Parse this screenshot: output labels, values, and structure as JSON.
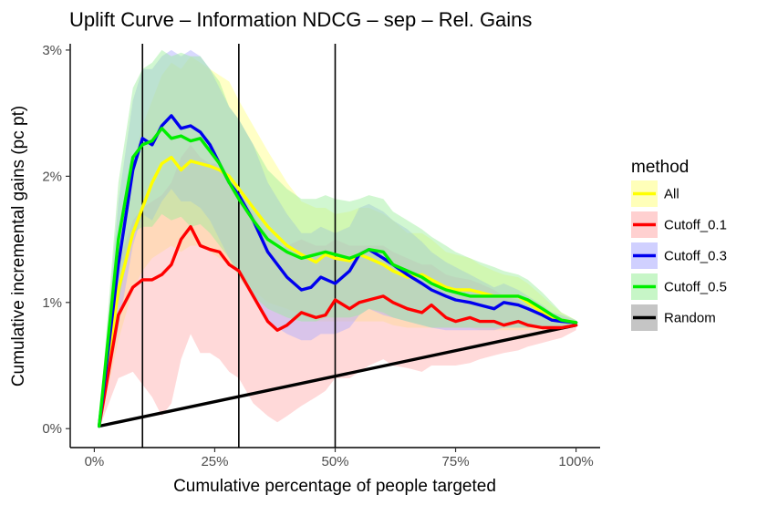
{
  "chart_data": {
    "type": "line",
    "title": "Uplift Curve –  Information NDCG  –  sep  –  Rel. Gains",
    "xlabel": "Cumulative percentage of people targeted",
    "ylabel": "Cumulative incremental gains (pc pt)",
    "xlim": [
      -5,
      105
    ],
    "ylim": [
      -0.15,
      3.05
    ],
    "x_ticks": [
      0,
      25,
      50,
      75,
      100
    ],
    "x_tick_labels": [
      "0%",
      "25%",
      "50%",
      "75%",
      "100%"
    ],
    "y_ticks": [
      0,
      1,
      2,
      3
    ],
    "y_tick_labels": [
      "0%",
      "1%",
      "2%",
      "3%"
    ],
    "vlines": [
      10,
      30,
      50
    ],
    "legend": {
      "title": "method",
      "position": "right"
    },
    "series": [
      {
        "name": "All",
        "color": "#ffff00",
        "band_color": "#ffff80",
        "x": [
          1,
          5,
          8,
          10,
          12,
          14,
          16,
          18,
          20,
          22,
          24,
          26,
          28,
          30,
          33,
          36,
          40,
          43,
          46,
          48,
          50,
          53,
          55,
          57,
          60,
          62,
          65,
          68,
          70,
          73,
          75,
          78,
          80,
          83,
          85,
          88,
          90,
          93,
          95,
          97,
          100
        ],
        "y": [
          0.02,
          1.1,
          1.55,
          1.75,
          1.95,
          2.1,
          2.15,
          2.05,
          2.12,
          2.1,
          2.08,
          2.05,
          2.0,
          1.9,
          1.75,
          1.6,
          1.45,
          1.38,
          1.32,
          1.38,
          1.35,
          1.33,
          1.38,
          1.35,
          1.3,
          1.25,
          1.2,
          1.22,
          1.18,
          1.12,
          1.1,
          1.1,
          1.08,
          1.05,
          1.05,
          1.05,
          1.0,
          0.92,
          0.88,
          0.86,
          0.84
        ],
        "lower": [
          0.0,
          0.7,
          1.1,
          1.25,
          1.35,
          1.4,
          1.45,
          1.4,
          1.45,
          1.45,
          1.4,
          1.35,
          1.3,
          1.25,
          1.1,
          1.0,
          0.95,
          0.9,
          0.85,
          0.85,
          0.85,
          0.85,
          0.85,
          0.85,
          0.85,
          0.82,
          0.8,
          0.8,
          0.8,
          0.8,
          0.8,
          0.8,
          0.78,
          0.78,
          0.78,
          0.78,
          0.78,
          0.78,
          0.79,
          0.8,
          0.83
        ],
        "upper": [
          0.05,
          1.5,
          2.1,
          2.4,
          2.6,
          2.8,
          2.9,
          2.85,
          2.95,
          2.9,
          2.85,
          2.8,
          2.75,
          2.6,
          2.4,
          2.2,
          1.95,
          1.8,
          1.75,
          1.75,
          1.7,
          1.72,
          1.75,
          1.75,
          1.7,
          1.65,
          1.55,
          1.55,
          1.5,
          1.4,
          1.38,
          1.35,
          1.3,
          1.25,
          1.22,
          1.2,
          1.15,
          1.05,
          0.98,
          0.92,
          0.86
        ]
      },
      {
        "name": "Cutoff_0.1",
        "color": "#ff0000",
        "band_color": "#ffaaaa",
        "x": [
          1,
          5,
          8,
          10,
          12,
          14,
          16,
          18,
          20,
          22,
          24,
          26,
          28,
          30,
          33,
          36,
          38,
          40,
          43,
          46,
          48,
          50,
          53,
          55,
          57,
          60,
          62,
          65,
          68,
          70,
          73,
          75,
          78,
          80,
          83,
          85,
          88,
          90,
          93,
          95,
          97,
          100
        ],
        "y": [
          0.02,
          0.9,
          1.12,
          1.18,
          1.18,
          1.22,
          1.3,
          1.5,
          1.6,
          1.45,
          1.42,
          1.4,
          1.3,
          1.25,
          1.05,
          0.85,
          0.78,
          0.82,
          0.92,
          0.88,
          0.9,
          1.02,
          0.95,
          1.0,
          1.02,
          1.05,
          1.0,
          0.95,
          0.92,
          0.98,
          0.88,
          0.85,
          0.88,
          0.85,
          0.85,
          0.82,
          0.85,
          0.82,
          0.8,
          0.8,
          0.8,
          0.82
        ],
        "lower": [
          0.0,
          0.4,
          0.45,
          0.35,
          0.25,
          0.1,
          0.2,
          0.55,
          0.75,
          0.6,
          0.6,
          0.55,
          0.45,
          0.4,
          0.2,
          0.1,
          0.05,
          0.1,
          0.18,
          0.25,
          0.3,
          0.4,
          0.4,
          0.45,
          0.5,
          0.55,
          0.5,
          0.48,
          0.45,
          0.5,
          0.5,
          0.5,
          0.52,
          0.55,
          0.58,
          0.6,
          0.62,
          0.65,
          0.68,
          0.7,
          0.72,
          0.78
        ],
        "upper": [
          0.05,
          1.3,
          1.65,
          1.75,
          1.8,
          1.85,
          1.95,
          2.15,
          2.25,
          2.15,
          2.1,
          2.1,
          1.95,
          1.9,
          1.7,
          1.5,
          1.42,
          1.45,
          1.5,
          1.45,
          1.45,
          1.5,
          1.45,
          1.45,
          1.45,
          1.45,
          1.4,
          1.35,
          1.3,
          1.3,
          1.22,
          1.2,
          1.18,
          1.15,
          1.1,
          1.05,
          1.02,
          0.98,
          0.92,
          0.9,
          0.88,
          0.85
        ]
      },
      {
        "name": "Cutoff_0.3",
        "color": "#0000ee",
        "band_color": "#aaaaff",
        "x": [
          1,
          5,
          8,
          10,
          12,
          14,
          16,
          18,
          20,
          22,
          24,
          26,
          28,
          30,
          33,
          36,
          40,
          43,
          45,
          47,
          50,
          53,
          55,
          57,
          60,
          62,
          65,
          68,
          70,
          73,
          75,
          78,
          80,
          83,
          85,
          88,
          90,
          93,
          95,
          97,
          100
        ],
        "y": [
          0.02,
          1.3,
          2.05,
          2.3,
          2.25,
          2.4,
          2.48,
          2.38,
          2.4,
          2.35,
          2.25,
          2.1,
          1.95,
          1.85,
          1.65,
          1.4,
          1.2,
          1.1,
          1.12,
          1.2,
          1.15,
          1.25,
          1.38,
          1.42,
          1.35,
          1.3,
          1.22,
          1.15,
          1.1,
          1.05,
          1.02,
          1.0,
          0.98,
          0.95,
          1.0,
          0.98,
          0.95,
          0.9,
          0.86,
          0.85,
          0.84
        ],
        "lower": [
          0.0,
          0.8,
          1.45,
          1.7,
          1.65,
          1.8,
          1.9,
          1.8,
          1.8,
          1.75,
          1.65,
          1.5,
          1.35,
          1.25,
          1.05,
          0.85,
          0.75,
          0.7,
          0.7,
          0.75,
          0.75,
          0.8,
          0.9,
          0.95,
          0.9,
          0.88,
          0.85,
          0.82,
          0.8,
          0.78,
          0.78,
          0.78,
          0.78,
          0.78,
          0.8,
          0.8,
          0.8,
          0.8,
          0.8,
          0.8,
          0.83
        ],
        "upper": [
          0.05,
          1.8,
          2.6,
          2.85,
          2.85,
          2.95,
          3.0,
          2.95,
          3.0,
          2.95,
          2.85,
          2.7,
          2.55,
          2.45,
          2.25,
          1.95,
          1.7,
          1.55,
          1.55,
          1.6,
          1.55,
          1.6,
          1.75,
          1.78,
          1.72,
          1.65,
          1.58,
          1.48,
          1.4,
          1.32,
          1.28,
          1.22,
          1.18,
          1.12,
          1.15,
          1.1,
          1.05,
          0.98,
          0.92,
          0.9,
          0.86
        ]
      },
      {
        "name": "Cutoff_0.5",
        "color": "#00ee00",
        "band_color": "#99ee99",
        "x": [
          1,
          5,
          8,
          10,
          12,
          14,
          16,
          18,
          20,
          22,
          24,
          26,
          28,
          30,
          33,
          36,
          40,
          43,
          46,
          48,
          50,
          53,
          55,
          57,
          60,
          62,
          65,
          68,
          70,
          73,
          75,
          78,
          80,
          83,
          85,
          88,
          90,
          93,
          95,
          97,
          100
        ],
        "y": [
          0.02,
          1.5,
          2.15,
          2.25,
          2.28,
          2.38,
          2.3,
          2.32,
          2.28,
          2.3,
          2.2,
          2.1,
          1.95,
          1.82,
          1.65,
          1.5,
          1.4,
          1.35,
          1.38,
          1.4,
          1.38,
          1.35,
          1.38,
          1.42,
          1.4,
          1.3,
          1.25,
          1.2,
          1.15,
          1.1,
          1.08,
          1.05,
          1.05,
          1.05,
          1.05,
          1.05,
          1.02,
          0.95,
          0.9,
          0.86,
          0.84
        ],
        "lower": [
          0.0,
          1.0,
          1.55,
          1.6,
          1.6,
          1.7,
          1.65,
          1.68,
          1.6,
          1.62,
          1.55,
          1.45,
          1.35,
          1.2,
          1.05,
          0.95,
          0.88,
          0.85,
          0.85,
          0.88,
          0.88,
          0.88,
          0.9,
          0.95,
          0.92,
          0.88,
          0.85,
          0.82,
          0.8,
          0.8,
          0.8,
          0.8,
          0.8,
          0.8,
          0.8,
          0.8,
          0.8,
          0.8,
          0.8,
          0.8,
          0.83
        ],
        "upper": [
          0.05,
          1.95,
          2.7,
          2.85,
          2.9,
          3.0,
          2.95,
          2.98,
          2.95,
          2.95,
          2.85,
          2.75,
          2.55,
          2.45,
          2.25,
          2.05,
          1.9,
          1.82,
          1.82,
          1.85,
          1.82,
          1.8,
          1.82,
          1.85,
          1.82,
          1.72,
          1.65,
          1.58,
          1.52,
          1.45,
          1.4,
          1.35,
          1.32,
          1.28,
          1.25,
          1.22,
          1.18,
          1.08,
          1.0,
          0.92,
          0.86
        ]
      },
      {
        "name": "Random",
        "color": "#000000",
        "band_color": "#bfbfbf",
        "x": [
          1,
          100
        ],
        "y": [
          0.02,
          0.82
        ]
      }
    ]
  }
}
